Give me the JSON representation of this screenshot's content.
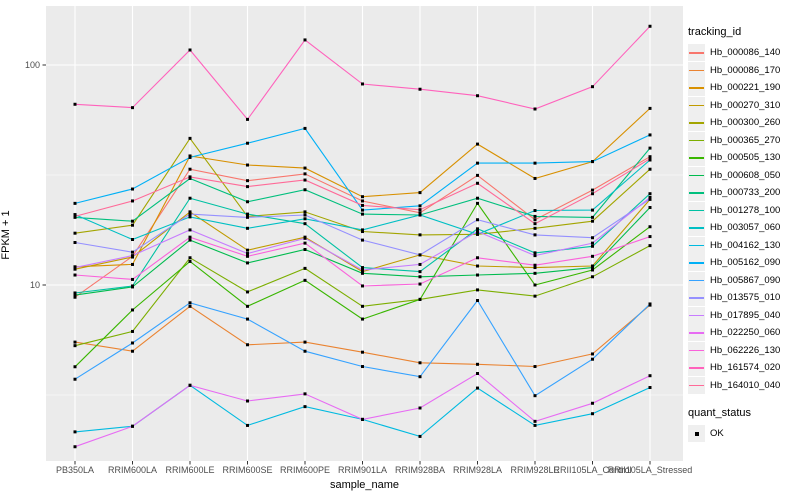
{
  "chart_data": {
    "type": "line",
    "title": "",
    "xlabel": "sample_name",
    "ylabel": "FPKM + 1",
    "yscale": "log10",
    "ylim": [
      1.6,
      180
    ],
    "y_ticks": [
      10,
      100
    ],
    "y_minor_ticks": [
      3.1623,
      31.623
    ],
    "panel_bg": "#EBEBEB",
    "grid_color": "#FFFFFF",
    "tick_label_color": "#4D4D4D",
    "tick_mark_color": "#333333",
    "point_color": "#000000",
    "point_shape": "square",
    "legend_position": "right",
    "categories": [
      "PB350LA",
      "RRIM600LA",
      "RRIM600LE",
      "RRIM600SE",
      "RRIM600PE",
      "RRIM901LA",
      "RRIM928BA",
      "RRIM928LA",
      "RRIM928LE",
      "RRII105LA_Control",
      "RRII105LA_Stressed"
    ],
    "series": [
      {
        "name": "Hb_000086_140",
        "color": "#F8766D",
        "values": [
          8.8,
          13.5,
          33.6,
          29.8,
          32.0,
          24.1,
          21.3,
          31.5,
          19.8,
          27.0,
          38.3
        ]
      },
      {
        "name": "Hb_000086_170",
        "color": "#EA8331",
        "values": [
          5.5,
          5.0,
          8.0,
          5.35,
          5.5,
          4.95,
          4.43,
          4.36,
          4.26,
          4.86,
          8.1
        ]
      },
      {
        "name": "Hb_000221_190",
        "color": "#D89000",
        "values": [
          12.1,
          12.4,
          38.6,
          35.1,
          34.0,
          25.2,
          26.3,
          43.7,
          30.5,
          36.4,
          63.5
        ]
      },
      {
        "name": "Hb_000270_310",
        "color": "#C09B00",
        "values": [
          11.8,
          13.4,
          21.5,
          14.4,
          16.5,
          11.5,
          13.7,
          12.2,
          12.0,
          12.2,
          24.5
        ]
      },
      {
        "name": "Hb_000300_260",
        "color": "#A3A500",
        "values": [
          17.2,
          18.7,
          46.4,
          20.5,
          21.5,
          17.5,
          16.9,
          17.0,
          18.1,
          19.5,
          33.6
        ]
      },
      {
        "name": "Hb_000365_270",
        "color": "#7CAE00",
        "values": [
          5.3,
          6.15,
          13.3,
          9.3,
          11.9,
          8.0,
          8.6,
          9.5,
          8.9,
          10.9,
          15.1
        ]
      },
      {
        "name": "Hb_000505_130",
        "color": "#39B600",
        "values": [
          4.25,
          7.7,
          12.8,
          8.0,
          10.5,
          7.0,
          8.6,
          23.5,
          10.0,
          11.7,
          18.4
        ]
      },
      {
        "name": "Hb_000608_050",
        "color": "#00BB4E",
        "values": [
          9.0,
          9.8,
          16.0,
          12.6,
          14.5,
          11.3,
          10.9,
          11.1,
          11.3,
          12.0,
          22.5
        ]
      },
      {
        "name": "Hb_000733_200",
        "color": "#00BF7D",
        "values": [
          20.3,
          19.5,
          30.5,
          23.9,
          27.1,
          21.0,
          20.8,
          24.8,
          20.5,
          20.3,
          41.9
        ]
      },
      {
        "name": "Hb_001278_100",
        "color": "#00C1A3",
        "values": [
          9.2,
          9.9,
          24.8,
          21.0,
          19.0,
          12.0,
          11.5,
          18.0,
          14.0,
          15.0,
          26.0
        ]
      },
      {
        "name": "Hb_003057_060",
        "color": "#00BFC4",
        "values": [
          20.9,
          16.1,
          20.4,
          18.1,
          20.0,
          17.8,
          20.8,
          17.0,
          21.8,
          21.9,
          37.0
        ]
      },
      {
        "name": "Hb_004162_130",
        "color": "#00BAE0",
        "values": [
          2.15,
          2.28,
          3.5,
          2.3,
          2.8,
          2.45,
          2.05,
          3.4,
          2.3,
          2.6,
          3.42
        ]
      },
      {
        "name": "Hb_005162_090",
        "color": "#00B0F6",
        "values": [
          23.5,
          27.3,
          38.0,
          44.1,
          51.5,
          21.9,
          22.9,
          35.8,
          35.8,
          36.4,
          48.1
        ]
      },
      {
        "name": "Hb_005867_090",
        "color": "#35A2FF",
        "values": [
          3.73,
          5.45,
          8.3,
          7.0,
          5.0,
          4.26,
          3.83,
          8.5,
          3.14,
          4.6,
          8.2
        ]
      },
      {
        "name": "Hb_013575_010",
        "color": "#9590FF",
        "values": [
          15.6,
          14.1,
          21.0,
          20.3,
          20.8,
          16.0,
          13.7,
          19.8,
          16.9,
          16.4,
          24.6
        ]
      },
      {
        "name": "Hb_017895_040",
        "color": "#C77CFF",
        "values": [
          12.0,
          13.6,
          17.8,
          13.9,
          16.3,
          11.7,
          12.4,
          17.5,
          13.6,
          15.5,
          25.0
        ]
      },
      {
        "name": "Hb_022250_060",
        "color": "#E76BF3",
        "values": [
          1.84,
          2.28,
          3.5,
          2.97,
          3.2,
          2.45,
          2.76,
          3.96,
          2.4,
          2.9,
          3.87
        ]
      },
      {
        "name": "Hb_062226_130",
        "color": "#FA62DB",
        "values": [
          11.1,
          10.6,
          16.5,
          13.5,
          15.5,
          9.9,
          10.1,
          13.3,
          12.3,
          13.5,
          16.6
        ]
      },
      {
        "name": "Hb_161574_020",
        "color": "#FF62BC",
        "values": [
          66.3,
          64.0,
          117.0,
          56.6,
          130.0,
          82.0,
          77.6,
          72.5,
          63.1,
          79.7,
          150.0
        ]
      },
      {
        "name": "Hb_164010_040",
        "color": "#FF6A98",
        "values": [
          20.5,
          24.1,
          31.0,
          28.0,
          30.0,
          23.0,
          22.0,
          29.0,
          19.0,
          26.0,
          37.5
        ]
      }
    ]
  },
  "legend": {
    "tracking_title": "tracking_id",
    "quant_title": "quant_status",
    "quant_items": [
      "OK"
    ]
  }
}
